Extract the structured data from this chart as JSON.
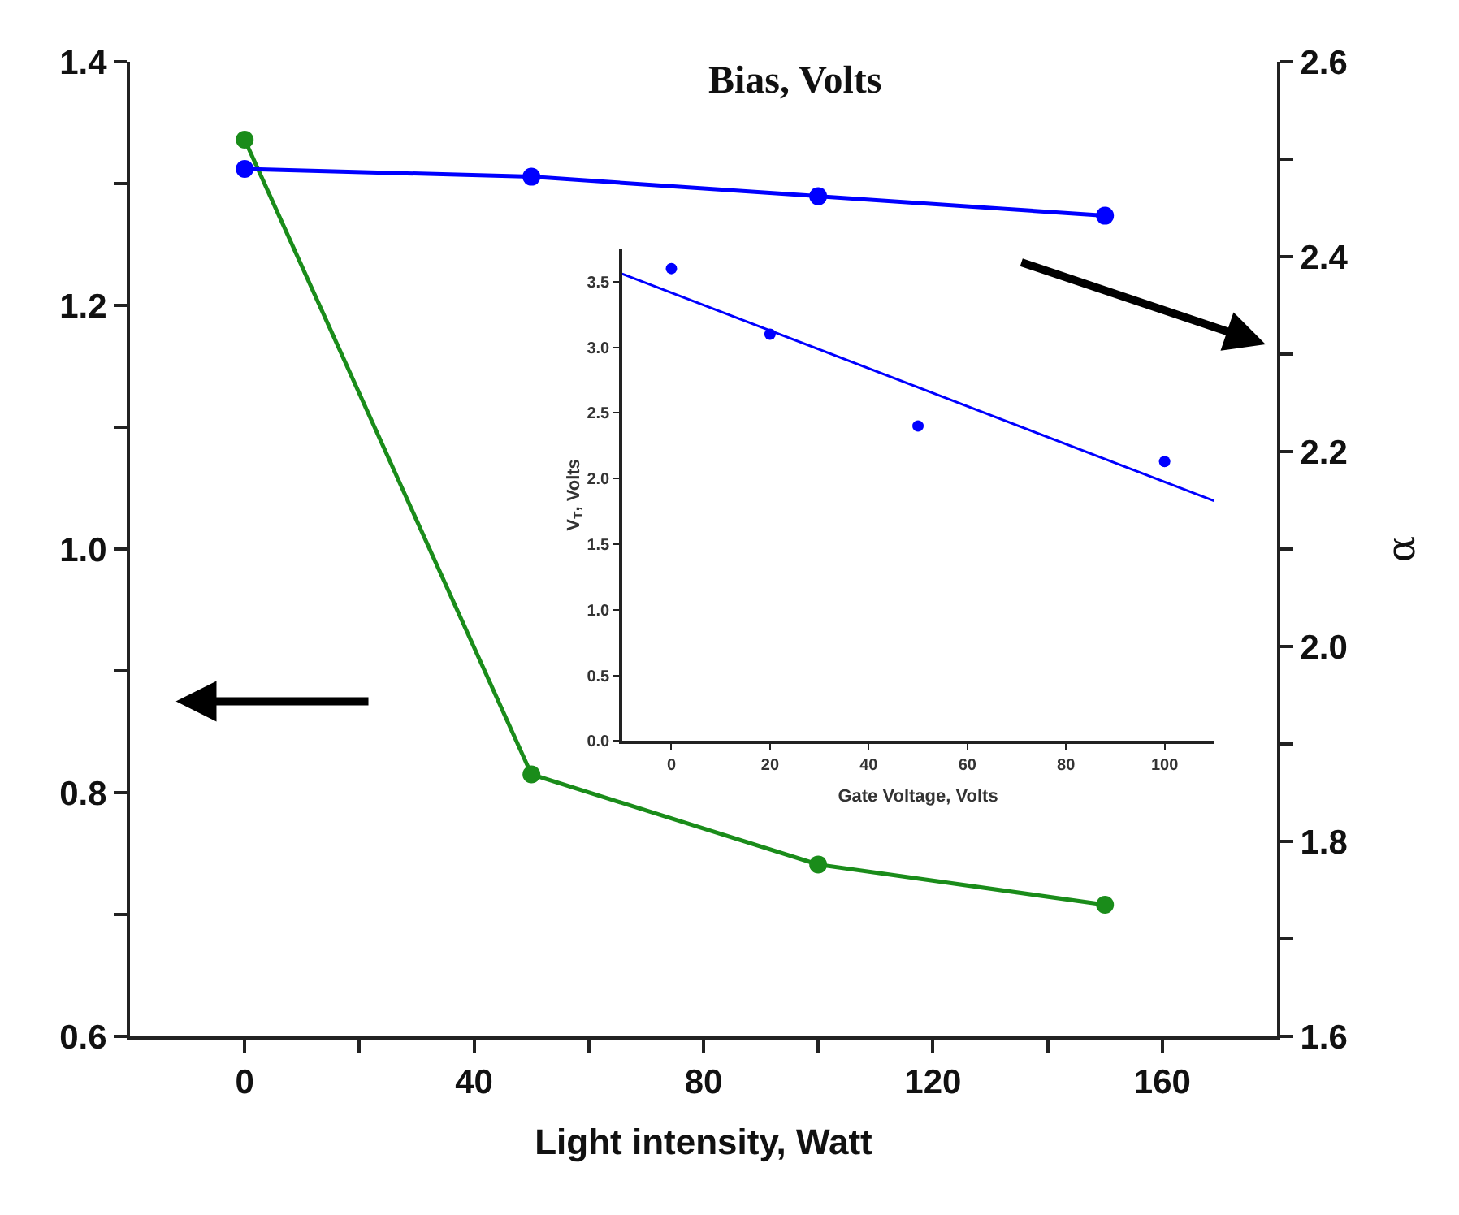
{
  "chart_data": [
    {
      "type": "line",
      "title": "Bias, Volts",
      "xlabel": "Light intensity, Watt",
      "y2label": "α",
      "x": [
        0,
        50,
        100,
        150
      ],
      "xlim": [
        -20,
        180
      ],
      "xticks": [
        0,
        {
          "value": 20,
          "label": null
        },
        40,
        {
          "value": 60,
          "label": null
        },
        80,
        {
          "value": 100,
          "label": null
        },
        120,
        {
          "value": 140,
          "label": null
        },
        160
      ],
      "ylim": [
        0.6,
        1.4
      ],
      "yticks": [
        0.6,
        {
          "value": 0.7,
          "label": null
        },
        0.8,
        {
          "value": 0.9,
          "label": null
        },
        {
          "value": 1.0,
          "label": "1.0"
        },
        {
          "value": 1.1,
          "label": null
        },
        1.2,
        {
          "value": 1.3,
          "label": null
        },
        1.4
      ],
      "y2lim": [
        1.6,
        2.6
      ],
      "y2ticks": [
        1.6,
        {
          "value": 1.7,
          "label": null
        },
        1.8,
        {
          "value": 1.9,
          "label": null
        },
        {
          "value": 2.0,
          "label": "2.0"
        },
        {
          "value": 2.1,
          "label": null
        },
        2.2,
        {
          "value": 2.3,
          "label": null
        },
        2.4,
        {
          "value": 2.5,
          "label": null
        },
        2.6
      ],
      "marker": "circle",
      "series": [
        {
          "color": "#1a8c1a",
          "values": [
            1.336,
            0.815,
            0.741,
            0.708
          ]
        },
        {
          "color": "#0000ff",
          "axis": "y2",
          "values": [
            2.49,
            2.482,
            2.462,
            2.442
          ]
        }
      ]
    },
    {
      "type": "scatter",
      "xlabel": "Gate Voltage, Volts",
      "ylabel": "V$_{T}$, Volts",
      "x": [
        0,
        20,
        50,
        100
      ],
      "xlim": [
        -10,
        110
      ],
      "xticks": [
        0,
        20,
        40,
        60,
        80,
        100
      ],
      "ylim": [
        0,
        3.75
      ],
      "yticks": [
        {
          "value": 0,
          "label": "0.0"
        },
        0.5,
        {
          "value": 1,
          "label": "1.0"
        },
        1.5,
        {
          "value": 2,
          "label": "2.0"
        },
        2.5,
        {
          "value": 3,
          "label": "3.0"
        },
        3.5
      ],
      "series": [
        {
          "color": "#0000ff",
          "marker": "circle",
          "values": [
            3.6,
            3.1,
            2.4,
            2.13
          ]
        },
        {
          "type": "line",
          "color": "#0000ff",
          "x": [
            -10,
            110
          ],
          "marker": "none",
          "values": [
            3.56,
            1.83
          ]
        }
      ]
    }
  ]
}
